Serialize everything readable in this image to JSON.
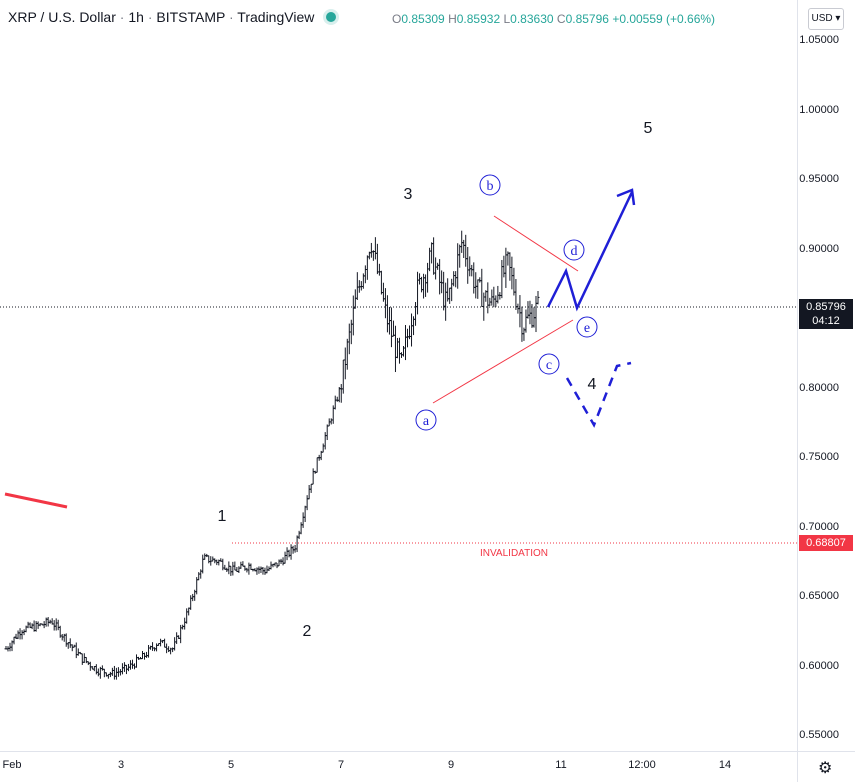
{
  "header": {
    "symbol": "XRP / U.S. Dollar",
    "interval": "1h",
    "exchange": "BITSTAMP",
    "platform": "TradingView",
    "open_label": "O",
    "open": "0.85309",
    "high_label": "H",
    "high": "0.85932",
    "low_label": "L",
    "low": "0.83630",
    "close_label": "C",
    "close": "0.85796",
    "change": "+0.00559 (+0.66%)",
    "currency_button": "USD"
  },
  "price_scale": {
    "ticks": [
      "1.05000",
      "1.00000",
      "0.95000",
      "0.90000",
      "0.85000",
      "0.80000",
      "0.75000",
      "0.70000",
      "0.65000",
      "0.60000",
      "0.55000"
    ],
    "last_price": "0.85796",
    "countdown": "04:12",
    "invalidation_price": "0.68807"
  },
  "time_scale": {
    "ticks": [
      "Feb",
      "3",
      "5",
      "7",
      "9",
      "11",
      "12:00",
      "14"
    ]
  },
  "colors": {
    "up": "#26a69a",
    "candle": "#131722",
    "annotation_blue": "#1f1fd6",
    "annotation_red": "#f23645",
    "background": "#ffffff"
  },
  "chart_data": {
    "type": "candlestick",
    "symbol": "XRP / U.S. Dollar",
    "interval": "1h",
    "ylim": [
      0.535,
      1.07
    ],
    "last_price": 0.85796,
    "invalidation_level": 0.68807,
    "invalidation_label": "INVALIDATION",
    "x_ticks": [
      "Feb",
      "3",
      "5",
      "7",
      "9",
      "11",
      "12:00",
      "14"
    ],
    "wave_labels": [
      "1",
      "2",
      "3",
      "4",
      "5"
    ],
    "triangle_labels": [
      "a",
      "b",
      "c",
      "d",
      "e"
    ],
    "price_path": [
      {
        "t": 0,
        "p": 0.612
      },
      {
        "t": 1,
        "p": 0.626
      },
      {
        "t": 2,
        "p": 0.628
      },
      {
        "t": 3,
        "p": 0.632
      },
      {
        "t": 4,
        "p": 0.618
      },
      {
        "t": 5,
        "p": 0.605
      },
      {
        "t": 6,
        "p": 0.597
      },
      {
        "t": 7,
        "p": 0.594
      },
      {
        "t": 8,
        "p": 0.598
      },
      {
        "t": 9,
        "p": 0.606
      },
      {
        "t": 10,
        "p": 0.617
      },
      {
        "t": 11,
        "p": 0.612
      },
      {
        "t": 12,
        "p": 0.64
      },
      {
        "t": 13,
        "p": 0.677
      },
      {
        "t": 14,
        "p": 0.675
      },
      {
        "t": 15,
        "p": 0.668
      },
      {
        "t": 16,
        "p": 0.672
      },
      {
        "t": 17,
        "p": 0.668
      },
      {
        "t": 18,
        "p": 0.674
      },
      {
        "t": 19,
        "p": 0.685
      },
      {
        "t": 20,
        "p": 0.73
      },
      {
        "t": 21,
        "p": 0.765
      },
      {
        "t": 22,
        "p": 0.8
      },
      {
        "t": 23,
        "p": 0.862
      },
      {
        "t": 24,
        "p": 0.907
      },
      {
        "t": 25,
        "p": 0.852
      },
      {
        "t": 26,
        "p": 0.815
      },
      {
        "t": 27,
        "p": 0.868
      },
      {
        "t": 28,
        "p": 0.895
      },
      {
        "t": 29,
        "p": 0.858
      },
      {
        "t": 30,
        "p": 0.905
      },
      {
        "t": 31,
        "p": 0.87
      },
      {
        "t": 32,
        "p": 0.86
      },
      {
        "t": 33,
        "p": 0.89
      },
      {
        "t": 34,
        "p": 0.845
      },
      {
        "t": 35,
        "p": 0.858
      }
    ]
  }
}
